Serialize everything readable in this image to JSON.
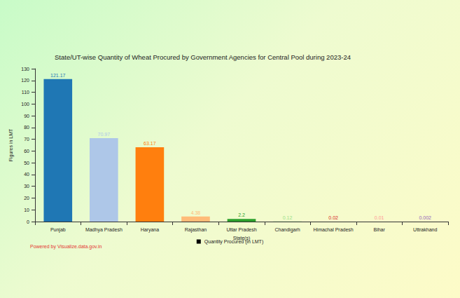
{
  "chart_data": {
    "type": "bar",
    "title": "State/UT-wise Quantity of Wheat Procured by Government Agencies for Central Pool during 2023-24",
    "x_label": "State(s)",
    "y_label": "Figures in LMT",
    "footer": "Powered by Visualize.data.gov.in",
    "categories": [
      "Punjab",
      "Madhya Pradesh",
      "Haryana",
      "Rajasthan",
      "Uttar Pradesh",
      "Chandigarh",
      "Himachal Pradesh",
      "Bihar",
      "Uttrakhand"
    ],
    "series": [
      {
        "name": "Quantity Procured (in LMT)",
        "values": [
          121.17,
          70.97,
          63.17,
          4.38,
          2.2,
          0.12,
          0.02,
          0.01,
          0.002
        ],
        "colors": [
          "#1f77b4",
          "#aec7e8",
          "#ff7f0e",
          "#ffbb78",
          "#2ca02c",
          "#98df8a",
          "#d62728",
          "#ff9896",
          "#9467bd"
        ]
      }
    ],
    "ylim": [
      0,
      130
    ],
    "yticks": [
      0,
      10,
      20,
      30,
      40,
      50,
      60,
      70,
      80,
      90,
      100,
      110,
      120,
      130
    ],
    "grid": false,
    "legend": "bottom",
    "data_labels": true
  }
}
